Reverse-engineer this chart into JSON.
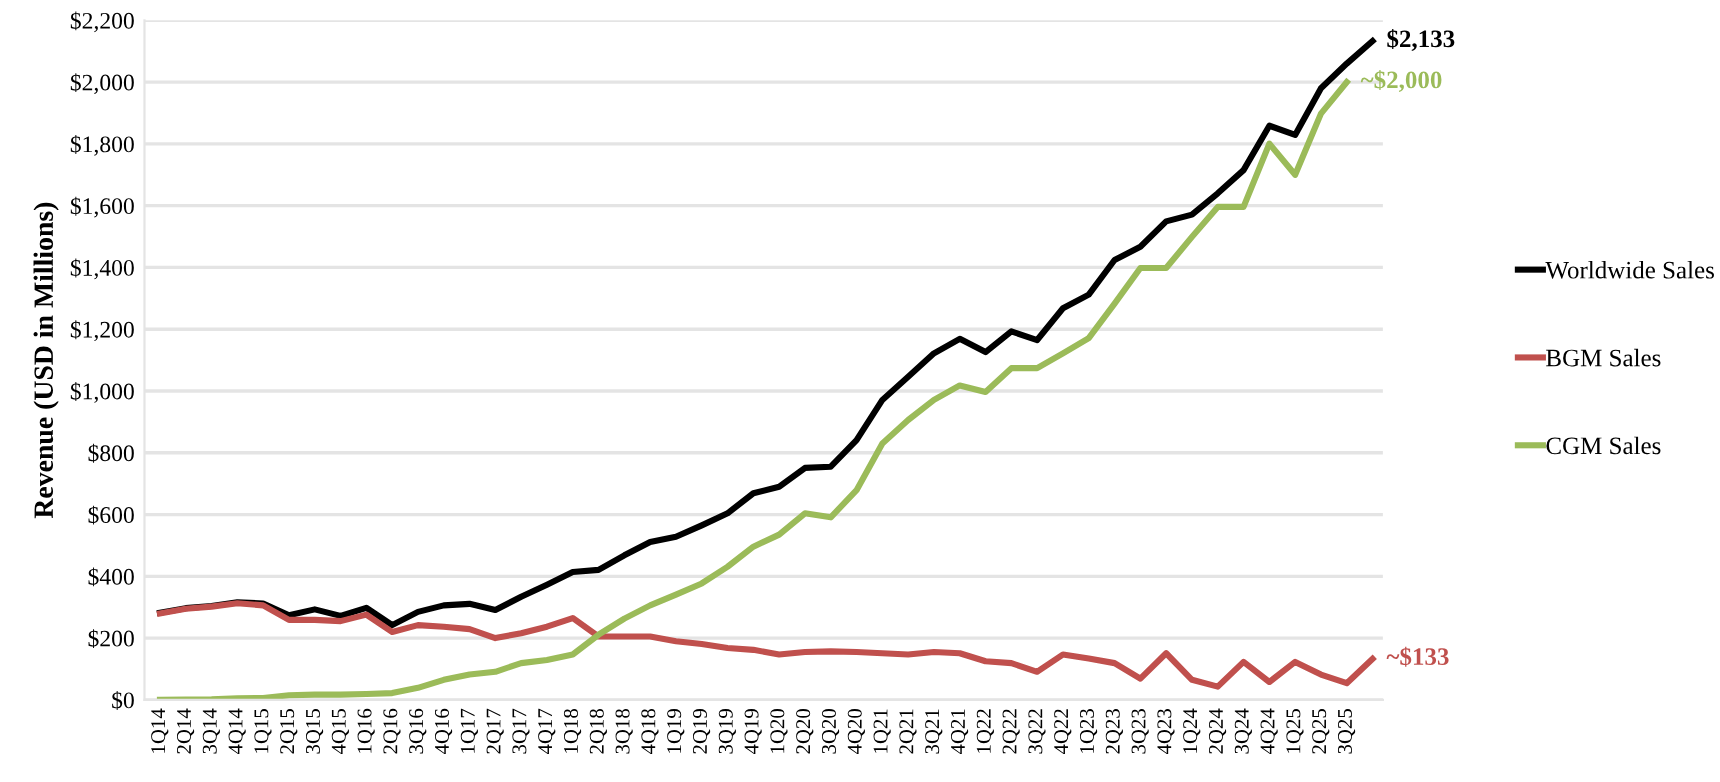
{
  "chart_data": {
    "type": "line",
    "ylabel": "Revenue (USD in Millions)",
    "categories": [
      "1Q14",
      "2Q14",
      "3Q14",
      "4Q14",
      "1Q15",
      "2Q15",
      "3Q15",
      "4Q15",
      "1Q16",
      "2Q16",
      "3Q16",
      "4Q16",
      "1Q17",
      "2Q17",
      "3Q17",
      "4Q17",
      "1Q18",
      "2Q18",
      "3Q18",
      "4Q18",
      "1Q19",
      "2Q19",
      "3Q19",
      "4Q19",
      "1Q20",
      "2Q20",
      "3Q20",
      "4Q20",
      "1Q21",
      "2Q21",
      "3Q21",
      "4Q21",
      "1Q22",
      "2Q22",
      "3Q22",
      "4Q22",
      "1Q23",
      "2Q23",
      "3Q23",
      "4Q23",
      "1Q24",
      "2Q24",
      "3Q24",
      "4Q24",
      "1Q25",
      "2Q25",
      "3Q25",
      null
    ],
    "series": [
      {
        "name": "Worldwide Sales",
        "color": "#000000",
        "values": [
          282,
          297,
          304,
          316,
          312,
          274,
          293,
          272,
          298,
          242,
          285,
          306,
          311,
          291,
          334,
          373,
          414,
          421,
          468,
          511,
          528,
          565,
          604,
          669,
          690,
          751,
          755,
          841,
          971,
          1046,
          1122,
          1169,
          1126,
          1193,
          1165,
          1268,
          1312,
          1424,
          1467,
          1549,
          1571,
          1640,
          1715,
          1859,
          1829,
          1980,
          2060,
          2133
        ]
      },
      {
        "name": "BGM Sales",
        "color": "#c0504d",
        "values": [
          280,
          295,
          302,
          313,
          306,
          259,
          259,
          255,
          276,
          220,
          242,
          237,
          229,
          200,
          216,
          237,
          265,
          205,
          205,
          205,
          190,
          181,
          168,
          162,
          147,
          155,
          157,
          155,
          151,
          147,
          155,
          151,
          125,
          119,
          91,
          147,
          134,
          119,
          69,
          151,
          65,
          43,
          123,
          58,
          123,
          82,
          54,
          133
        ]
      },
      {
        "name": "CGM Sales",
        "color": "#9bbb59",
        "values": [
          0,
          1,
          2,
          5,
          6,
          15,
          17,
          17,
          19,
          22,
          39,
          65,
          82,
          91,
          119,
          129,
          147,
          211,
          263,
          306,
          341,
          377,
          431,
          496,
          535,
          604,
          591,
          679,
          830,
          906,
          971,
          1018,
          997,
          1074,
          1074,
          1122,
          1171,
          1283,
          1398,
          1398,
          1499,
          1596,
          1596,
          1801,
          1700,
          1898,
          2000,
          null
        ]
      }
    ],
    "annotations": [
      "$2,133",
      "~$133",
      "~$2,000"
    ],
    "ylim": [
      0,
      2200
    ],
    "yticks": [
      {
        "value": 0,
        "label": "$0"
      },
      {
        "value": 200,
        "label": "$200"
      },
      {
        "value": 400,
        "label": "$400"
      },
      {
        "value": 600,
        "label": "$600"
      },
      {
        "value": 800,
        "label": "$800"
      },
      {
        "value": 1000,
        "label": "$1,000"
      },
      {
        "value": 1200,
        "label": "$1,200"
      },
      {
        "value": 1400,
        "label": "$1,400"
      },
      {
        "value": 1600,
        "label": "$1,600"
      },
      {
        "value": 1800,
        "label": "$1,800"
      },
      {
        "value": 2000,
        "label": "$2,000"
      },
      {
        "value": 2200,
        "label": "$2,200"
      }
    ],
    "grid": "y",
    "legend": "right",
    "marker": "none",
    "line_style": "solid"
  }
}
